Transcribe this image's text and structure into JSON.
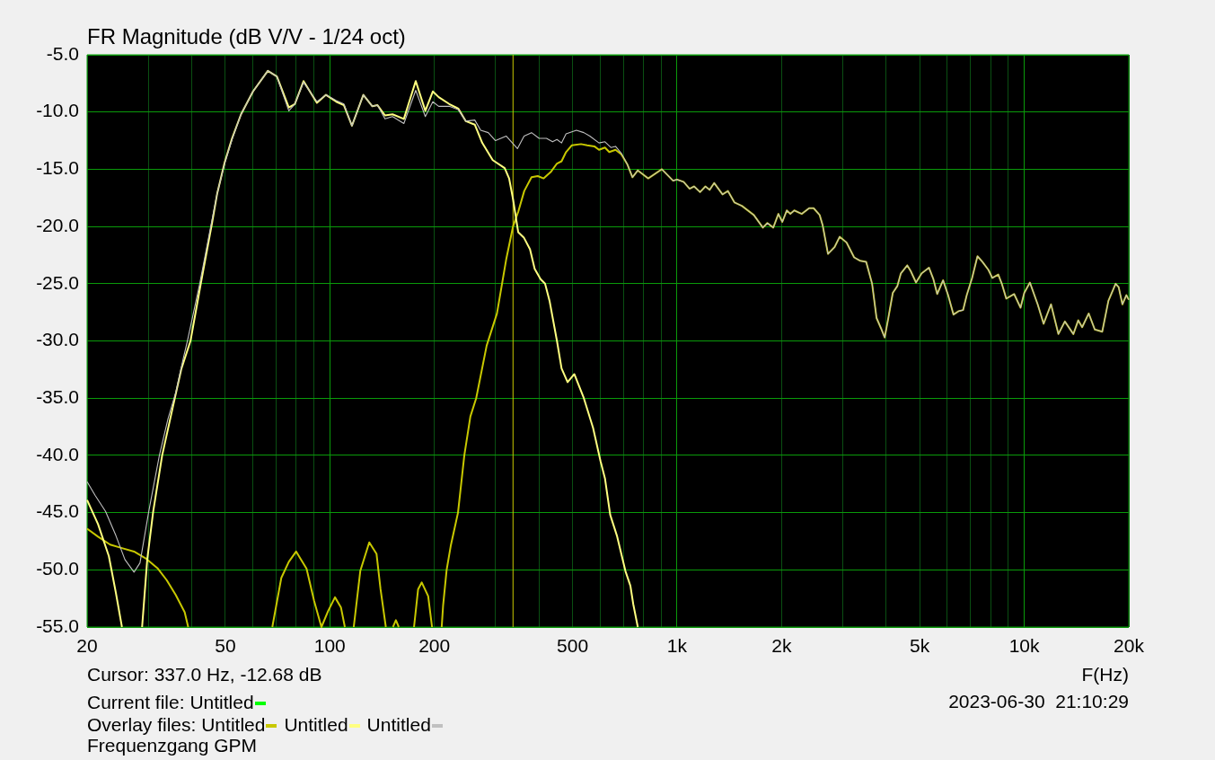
{
  "chart_data": {
    "type": "line",
    "title": "FR Magnitude (dB V/V - 1/24 oct)",
    "xlabel": "F(Hz)",
    "annotations": [
      "Cursor: 337.0 Hz, -12.68 dB",
      "Current file:",
      "Overlay files:",
      "2023-06-30  21:10:29",
      "Frequenzgang GPM"
    ],
    "log": "x",
    "grid": true,
    "legend": "bottom",
    "xlim": [
      20,
      20000
    ],
    "ylim": [
      -55,
      -5
    ],
    "xticks": [
      20,
      {
        "value": 30,
        "label": null
      },
      {
        "value": 40,
        "label": null
      },
      50,
      {
        "value": 60,
        "label": null
      },
      {
        "value": 70,
        "label": null
      },
      {
        "value": 80,
        "label": null
      },
      {
        "value": 90,
        "label": null
      },
      100,
      200,
      {
        "value": 300,
        "label": null
      },
      {
        "value": 400,
        "label": null
      },
      500,
      {
        "value": 600,
        "label": null
      },
      {
        "value": 700,
        "label": null
      },
      {
        "value": 800,
        "label": null
      },
      {
        "value": 900,
        "label": null
      },
      {
        "value": 1000,
        "label": "1k"
      },
      {
        "value": 2000,
        "label": "2k"
      },
      {
        "value": 3000,
        "label": null
      },
      {
        "value": 4000,
        "label": null
      },
      {
        "value": 5000,
        "label": "5k"
      },
      {
        "value": 6000,
        "label": null
      },
      {
        "value": 7000,
        "label": null
      },
      {
        "value": 8000,
        "label": null
      },
      {
        "value": 9000,
        "label": null
      },
      {
        "value": 10000,
        "label": "10k"
      },
      {
        "value": 20000,
        "label": "20k"
      }
    ],
    "yticks": [
      {
        "value": -55,
        "label": "-55.0"
      },
      {
        "value": -50,
        "label": "-50.0"
      },
      {
        "value": -45,
        "label": "-45.0"
      },
      {
        "value": -40,
        "label": "-40.0"
      },
      {
        "value": -35,
        "label": "-35.0"
      },
      {
        "value": -30,
        "label": "-30.0"
      },
      {
        "value": -25,
        "label": "-25.0"
      },
      {
        "value": -20,
        "label": "-20.0"
      },
      {
        "value": -15,
        "label": "-15.0"
      },
      {
        "value": -10,
        "label": "-10.0"
      },
      {
        "value": -5,
        "label": "-5.0"
      }
    ],
    "ref_lines": [
      {
        "axis": "x",
        "value": 337,
        "color": "#c8c800"
      }
    ],
    "series": [
      {
        "name": "Untitled",
        "color": "#00ff00"
      },
      {
        "name": "Untitled",
        "color": "#c8c800",
        "x": [
          20,
          21.5,
          23.3,
          25.2,
          27.3,
          29.5,
          32,
          33.9,
          36,
          38.2,
          39.1,
          50,
          68.3,
          72.5,
          76.2,
          80,
          85.7,
          90.1,
          94.6,
          98.9,
          103.5,
          107.7,
          110.5,
          114,
          117.2,
          122.4,
          129.9,
          136.3,
          140,
          145,
          148,
          152,
          155,
          158,
          166,
          174.8,
          179.6,
          184,
          192,
          197,
          204,
          210,
          212,
          217,
          223,
          234,
          244,
          254,
          264,
          283,
          303,
          322,
          337,
          349,
          363,
          381,
          397,
          413,
          434,
          451,
          465,
          479,
          498,
          529,
          551,
          578,
          596,
          620,
          638,
          665,
          691,
          720,
          744,
          771,
          826,
          904,
          974,
          1000,
          1044,
          1087,
          1120,
          1165,
          1207,
          1241,
          1279,
          1352,
          1401,
          1463,
          1537,
          1664,
          1767,
          1820,
          1893,
          1958,
          2010,
          2070,
          2120,
          2176,
          2286,
          2401,
          2474,
          2575,
          2627,
          2721,
          2843,
          2940,
          3078,
          3236,
          3369,
          3505,
          3646,
          3755,
          3868,
          3963,
          4060,
          4182,
          4311,
          4412,
          4604,
          4710,
          4878,
          5064,
          5315,
          5473,
          5614,
          5838,
          6035,
          6254,
          6470,
          6667,
          6829,
          7075,
          7333,
          7582,
          7887,
          8091,
          8416,
          8617,
          8875,
          9349,
          9757,
          10000,
          10380,
          10930,
          11370,
          11940,
          12540,
          13090,
          13850,
          14300,
          14680,
          15330,
          15960,
          16770,
          17470,
          18330,
          18700,
          19170,
          19680,
          20000
        ],
        "values": [
          -46.4,
          -47.1,
          -47.8,
          -48.1,
          -48.4,
          -49.0,
          -49.9,
          -50.9,
          -52.2,
          -53.7,
          -55,
          null,
          -55,
          -50.7,
          -49.3,
          -48.4,
          -49.9,
          -52.7,
          -55,
          -53.6,
          -52.4,
          -53.3,
          -55,
          null,
          -55,
          -50.1,
          -47.6,
          -48.6,
          -51.7,
          -55,
          null,
          -55,
          -54.4,
          -55,
          null,
          -55,
          -51.7,
          -51.1,
          -52.3,
          -55,
          null,
          -55,
          -53.1,
          -50,
          -47.9,
          -45,
          -40,
          -36.6,
          -35,
          -30.4,
          -27.6,
          -22.9,
          -20,
          -18.7,
          -16.9,
          -15.7,
          -15.6,
          -15.8,
          -15.2,
          -14.5,
          -14.3,
          -13.5,
          -12.9,
          -12.8,
          -12.9,
          -13.0,
          -13.3,
          -13.1,
          -13.5,
          -13.3,
          -13.7,
          -14.6,
          -15.7,
          -15.1,
          -15.8,
          -15.0,
          -16.0,
          -15.9,
          -16.1,
          -16.7,
          -16.5,
          -17.0,
          -16.5,
          -16.8,
          -16.2,
          -17.2,
          -16.9,
          -17.9,
          -18.2,
          -19.0,
          -20.1,
          -19.7,
          -20.1,
          -18.9,
          -19.6,
          -18.6,
          -18.9,
          -18.6,
          -18.9,
          -18.4,
          -18.4,
          -19.0,
          -19.9,
          -22.4,
          -21.8,
          -20.9,
          -21.4,
          -22.7,
          -23.0,
          -23.1,
          -25.0,
          -28.0,
          -28.9,
          -29.7,
          -28.0,
          -25.8,
          -25.2,
          -24.1,
          -23.4,
          -23.9,
          -24.9,
          -24.1,
          -23.6,
          -24.6,
          -25.9,
          -24.7,
          -26.0,
          -27.7,
          -27.4,
          -27.3,
          -26.0,
          -24.5,
          -22.6,
          -23.1,
          -23.8,
          -24.5,
          -24.2,
          -25.0,
          -26.3,
          -25.9,
          -27.1,
          -25.8,
          -24.9,
          -26.8,
          -28.5,
          -26.8,
          -29.4,
          -28.3,
          -29.4,
          -28.2,
          -28.8,
          -27.6,
          -29.0,
          -29.2,
          -26.5,
          -25.0,
          -25.3,
          -26.8,
          -26.0,
          -26.4
        ]
      },
      {
        "name": "Untitled",
        "color": "#ffff80",
        "x": [
          20,
          21.5,
          23.1,
          24.2,
          25.2,
          27,
          28.8,
          29.8,
          31.0,
          32.9,
          35.3,
          37.4,
          39.7,
          42.5,
          45.8,
          47.4,
          49.8,
          52.3,
          55.5,
          60.1,
          66.3,
          70.4,
          76.2,
          79.3,
          84,
          91.8,
          97.5,
          104.4,
          109.8,
          115.8,
          124.9,
          132.6,
          137.2,
          144.2,
          151.6,
          163.4,
          176.8,
          188.4,
          198,
          205.9,
          220.8,
          234.4,
          246.5,
          261.5,
          274.8,
          294.6,
          318.9,
          328.4,
          337,
          348.8,
          362.6,
          377.2,
          389,
          404.6,
          416.8,
          429.4,
          451,
          465,
          484,
          506,
          539,
          573,
          602,
          620,
          642,
          671,
          710,
          734,
          748,
          771
        ],
        "values": [
          -43.9,
          -46.0,
          -48.8,
          -52.0,
          -55,
          null,
          -55,
          -49.1,
          -44.9,
          -40.0,
          -35.8,
          -32.4,
          -30.0,
          -25.0,
          -19.7,
          -17.1,
          -14.4,
          -12.3,
          -10.2,
          -8.2,
          -6.4,
          -6.9,
          -9.6,
          -9.3,
          -7.3,
          -9.2,
          -8.5,
          -9.1,
          -9.4,
          -11.2,
          -8.5,
          -9.5,
          -9.4,
          -10.3,
          -10.2,
          -10.6,
          -7.3,
          -9.9,
          -8.2,
          -8.7,
          -9.3,
          -9.7,
          -10.8,
          -11.1,
          -12.7,
          -14.2,
          -14.9,
          -15.8,
          -17.6,
          -20.5,
          -21.0,
          -22.0,
          -23.7,
          -24.6,
          -25.0,
          -26.5,
          -30.0,
          -32.4,
          -33.6,
          -32.9,
          -35.0,
          -37.6,
          -40.5,
          -42.0,
          -45.2,
          -47.0,
          -50.1,
          -51.4,
          -53.0,
          -55
        ]
      },
      {
        "name": "Untitled",
        "color": "#c0c0c0",
        "x": [
          20,
          21.1,
          22.6,
          24.2,
          25.7,
          27.3,
          28.4,
          30.1,
          32.3,
          34.2,
          36.0,
          37.8,
          38.9,
          42.2,
          45.6,
          47.4,
          49.8,
          52.3,
          55.5,
          60.1,
          66.3,
          70.4,
          76.2,
          79.3,
          84,
          91.8,
          97.5,
          104.4,
          109.8,
          115.8,
          124.9,
          132.6,
          137.2,
          144.2,
          151.6,
          163.4,
          176.8,
          188.4,
          198,
          205.9,
          220.8,
          234.4,
          246.5,
          261.5,
          272,
          286,
          300,
          322,
          347,
          362.6,
          381,
          400.6,
          420.8,
          438,
          451,
          465,
          479,
          513,
          539,
          561,
          596,
          620,
          645,
          665,
          691,
          720,
          744,
          771,
          826,
          904,
          974,
          1000,
          1044,
          1087,
          1120,
          1165,
          1207,
          1241,
          1279,
          1352,
          1401,
          1463,
          1537,
          1664,
          1767,
          1820,
          1893,
          1958,
          2010,
          2070,
          2120,
          2176,
          2286,
          2401,
          2474,
          2575,
          2627,
          2721,
          2843,
          2940,
          3078,
          3236,
          3369,
          3505,
          3646,
          3755,
          3868,
          3963,
          4060,
          4182,
          4311,
          4412,
          4604,
          4710,
          4878,
          5064,
          5315,
          5473,
          5614,
          5838,
          6035,
          6254,
          6470,
          6667,
          6829,
          7075,
          7333,
          7582,
          7887,
          8091,
          8416,
          8617,
          8875,
          9349,
          9757,
          10000,
          10380,
          10930,
          11370,
          11940,
          12540,
          13090,
          13850,
          14300,
          14680,
          15330,
          15960,
          16770,
          17470,
          18330,
          18700,
          19170,
          19680,
          20000
        ],
        "values": [
          -42.3,
          -43.5,
          -44.9,
          -47.0,
          -49.1,
          -50.2,
          -49.4,
          -44.9,
          -40.0,
          -36.8,
          -34.5,
          -31.6,
          -30.0,
          -25.0,
          -19.7,
          -17.1,
          -14.5,
          -12.4,
          -10.2,
          -8.2,
          -6.4,
          -6.9,
          -9.9,
          -9.3,
          -7.4,
          -9.1,
          -8.5,
          -9.0,
          -9.3,
          -11.2,
          -8.5,
          -9.5,
          -9.4,
          -10.6,
          -10.4,
          -11.0,
          -8.1,
          -10.4,
          -9.1,
          -9.5,
          -9.5,
          -9.8,
          -10.8,
          -10.7,
          -11.6,
          -11.8,
          -12.5,
          -12.1,
          -13.2,
          -12.1,
          -11.8,
          -12.3,
          -12.3,
          -12.6,
          -12.4,
          -12.7,
          -11.9,
          -11.6,
          -11.8,
          -12.1,
          -12.7,
          -12.6,
          -13.1,
          -13.0,
          -13.6,
          -14.6,
          -15.7,
          -15.1,
          -15.8,
          -15.0,
          -16.0,
          -15.9,
          -16.1,
          -16.7,
          -16.5,
          -17.0,
          -16.5,
          -16.8,
          -16.2,
          -17.2,
          -16.9,
          -17.9,
          -18.2,
          -19.0,
          -20.1,
          -19.7,
          -20.1,
          -18.9,
          -19.6,
          -18.6,
          -18.9,
          -18.6,
          -18.9,
          -18.4,
          -18.4,
          -19.0,
          -19.9,
          -22.4,
          -21.8,
          -20.9,
          -21.4,
          -22.7,
          -23.0,
          -23.1,
          -25.0,
          -28.0,
          -28.9,
          -29.7,
          -28.0,
          -25.8,
          -25.2,
          -24.1,
          -23.4,
          -23.9,
          -24.9,
          -24.1,
          -23.6,
          -24.6,
          -25.9,
          -24.7,
          -26.0,
          -27.7,
          -27.4,
          -27.3,
          -26.0,
          -24.5,
          -22.6,
          -23.1,
          -23.8,
          -24.5,
          -24.2,
          -25.0,
          -26.3,
          -25.9,
          -27.1,
          -25.8,
          -24.9,
          -26.8,
          -28.5,
          -26.8,
          -29.4,
          -28.3,
          -29.4,
          -28.2,
          -28.8,
          -27.6,
          -29.0,
          -29.2,
          -26.5,
          -25.0,
          -25.3,
          -26.8,
          -26.0,
          -26.4
        ]
      }
    ]
  }
}
